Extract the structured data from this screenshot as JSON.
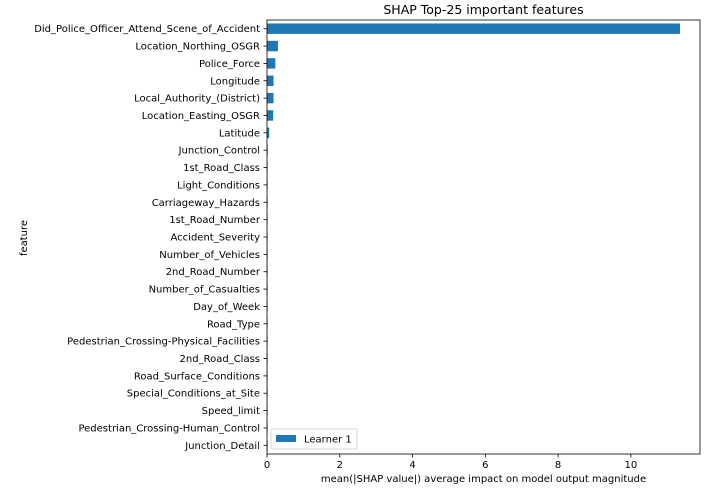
{
  "chart_data": {
    "type": "bar",
    "orientation": "horizontal",
    "title": "SHAP Top-25 important features",
    "xlabel": "mean(|SHAP value|) average impact on model output magnitude",
    "ylabel": "feature",
    "xlim": [
      0,
      11.9
    ],
    "xticks": [
      0,
      2,
      4,
      6,
      8,
      10
    ],
    "grid": false,
    "legend_position": "lower-left",
    "colors": {
      "bar": "#1f77b4",
      "axis": "#000000"
    },
    "categories": [
      "Did_Police_Officer_Attend_Scene_of_Accident",
      "Location_Northing_OSGR",
      "Police_Force",
      "Longitude",
      "Local_Authority_(District)",
      "Location_Easting_OSGR",
      "Latitude",
      "Junction_Control",
      "1st_Road_Class",
      "Light_Conditions",
      "Carriageway_Hazards",
      "1st_Road_Number",
      "Accident_Severity",
      "Number_of_Vehicles",
      "2nd_Road_Number",
      "Number_of_Casualties",
      "Day_of_Week",
      "Road_Type",
      "Pedestrian_Crossing-Physical_Facilities",
      "2nd_Road_Class",
      "Road_Surface_Conditions",
      "Special_Conditions_at_Site",
      "Speed_limit",
      "Pedestrian_Crossing-Human_Control",
      "Junction_Detail"
    ],
    "series": [
      {
        "name": "Learner 1",
        "values": [
          11.35,
          0.3,
          0.23,
          0.18,
          0.18,
          0.17,
          0.06,
          0.02,
          0.015,
          0.012,
          0.01,
          0.01,
          0.008,
          0.008,
          0.006,
          0.006,
          0.005,
          0.005,
          0.004,
          0.004,
          0.003,
          0.003,
          0.003,
          0.002,
          0.002
        ]
      }
    ]
  }
}
